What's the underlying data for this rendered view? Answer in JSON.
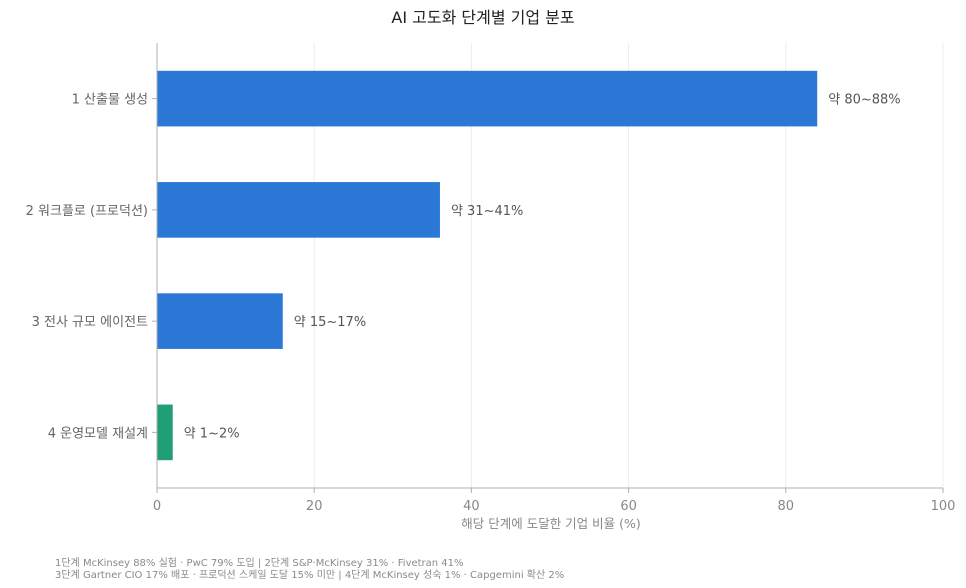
{
  "chart_data": {
    "type": "bar",
    "orientation": "horizontal",
    "title": "AI 고도화 단계별 기업 분포",
    "xlabel": "해당 단계에 도달한 기업 비율 (%)",
    "ylabel": "",
    "xlim": [
      0,
      100
    ],
    "x_ticks": [
      "0",
      "20",
      "40",
      "60",
      "80",
      "100"
    ],
    "grid": "vertical",
    "categories": [
      "1  산출물 생성",
      "2  워크플로 (프로덕션)",
      "3  전사 규모 에이전트",
      "4  운영모델 재설계"
    ],
    "values": [
      84,
      36,
      16,
      2
    ],
    "value_labels": [
      "약 80~88%",
      "약 31~41%",
      "약 15~17%",
      "약 1~2%"
    ],
    "colors": [
      "#2b78d6",
      "#2b78d6",
      "#2b78d6",
      "#1f9e78"
    ]
  },
  "footnotes": [
    "1단계 McKinsey 88% 실험 · PwC 79% 도입   |   2단계 S&P·McKinsey 31% · Fivetran 41%",
    "3단계 Gartner CIO 17% 배포 · 프로덕션 스케일 도달 15% 미만   |   4단계 McKinsey 성숙 1% · Capgemini 확산 2%"
  ]
}
